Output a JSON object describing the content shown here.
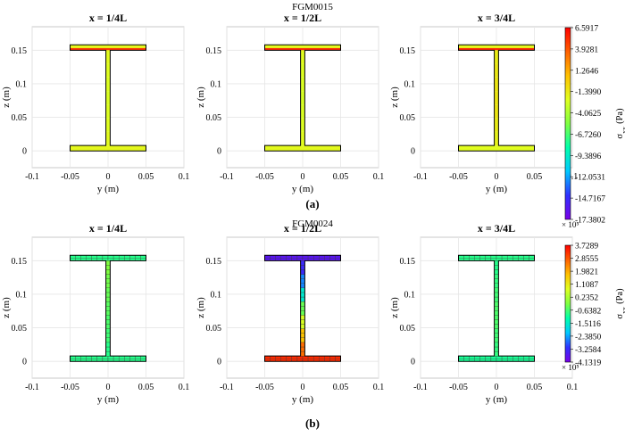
{
  "chart_data": [
    {
      "type": "heatmap",
      "title": "FGM0015",
      "caption": "(a)",
      "panels": [
        {
          "title": "x = 1/4L",
          "flange_values": [
            -2.0,
            -2.0
          ],
          "web_values": [
            -2.2,
            -2.4,
            -2.5,
            -2.6,
            -2.5,
            -2.4,
            -2.2
          ],
          "top_edge_value": 6.0
        },
        {
          "title": "x = 1/2L",
          "flange_values": [
            -2.1,
            -2.1
          ],
          "web_values": [
            -2.3,
            -2.5,
            -2.6,
            -2.7,
            -2.6,
            -2.5,
            -2.3
          ],
          "top_edge_value": 6.4
        },
        {
          "title": "x = 3/4L",
          "flange_values": [
            -2.3,
            -2.0
          ],
          "web_values": [
            -1.8,
            -1.5,
            -1.2,
            -1.2,
            -1.2,
            -1.3,
            -1.5
          ],
          "top_edge_value": 6.5
        }
      ],
      "xlabel": "y (m)",
      "ylabel": "z (m)",
      "xlim": [
        -0.1,
        0.1
      ],
      "ylim": [
        -0.025,
        0.185
      ],
      "x_ticks": [
        "-0.1",
        "-0.05",
        "0",
        "0.05",
        "0.1"
      ],
      "y_ticks": [
        "0",
        "0.05",
        "0.1",
        "0.15"
      ],
      "colorbar": {
        "label": "σxx (Pa)",
        "label_main": "σ",
        "label_sub": "xx",
        "label_unit": "(Pa)",
        "exponent": "× 10⁵",
        "range": [
          -17.3802,
          6.5917
        ],
        "ticks": [
          "6.5917",
          "3.9281",
          "1.2646",
          "-1.3990",
          "-4.0625",
          "-6.7260",
          "-9.3896",
          "-12.0531",
          "-14.7167",
          "-17.3802"
        ]
      }
    },
    {
      "type": "heatmap",
      "title": "FGM0024",
      "caption": "(b)",
      "panels": [
        {
          "title": "x = 1/4L",
          "flange_values": [
            -0.9,
            -0.9
          ],
          "web_values": [
            -0.9,
            -0.7,
            -0.6,
            -0.5,
            -0.4,
            -0.3,
            -0.2
          ]
        },
        {
          "title": "x = 1/2L",
          "flange_values": [
            3.3,
            -3.7
          ],
          "web_values": [
            2.6,
            1.7,
            0.7,
            -0.4,
            -1.6,
            -2.6,
            -3.3
          ]
        },
        {
          "title": "x = 3/4L",
          "flange_values": [
            -1.0,
            -0.9
          ],
          "web_values": [
            -0.8,
            -0.7,
            -0.6,
            -0.6,
            -0.7,
            -0.8,
            -0.9
          ]
        }
      ],
      "xlabel": "y (m)",
      "ylabel": "z (m)",
      "xlim": [
        -0.1,
        0.1
      ],
      "ylim": [
        -0.025,
        0.185
      ],
      "x_ticks": [
        "-0.1",
        "-0.05",
        "0",
        "0.05",
        "0.1"
      ],
      "y_ticks": [
        "0",
        "0.05",
        "0.1",
        "0.15"
      ],
      "colorbar": {
        "label": "σxx (Pa)",
        "label_main": "σ",
        "label_sub": "xx",
        "label_unit": "(Pa)",
        "exponent": "× 10⁵",
        "range": [
          -4.1319,
          3.7289
        ],
        "ticks": [
          "3.7289",
          "2.8555",
          "1.9821",
          "1.1087",
          "0.2352",
          "-0.6382",
          "-1.5116",
          "-2.3850",
          "-3.2584",
          "-4.1319"
        ]
      }
    }
  ],
  "colors": {
    "jet": [
      "#000080",
      "#0000ff",
      "#00ffff",
      "#7fff7f",
      "#ffff00",
      "#ff0000",
      "#800000"
    ],
    "cb_stops": [
      "#7a00e6",
      "#3030ff",
      "#00c8ff",
      "#00ffaa",
      "#80ff40",
      "#e0ff20",
      "#ffc000",
      "#ff6000",
      "#ff0000"
    ],
    "mesh_line": "#000000",
    "grid": "#e6e6e6"
  }
}
